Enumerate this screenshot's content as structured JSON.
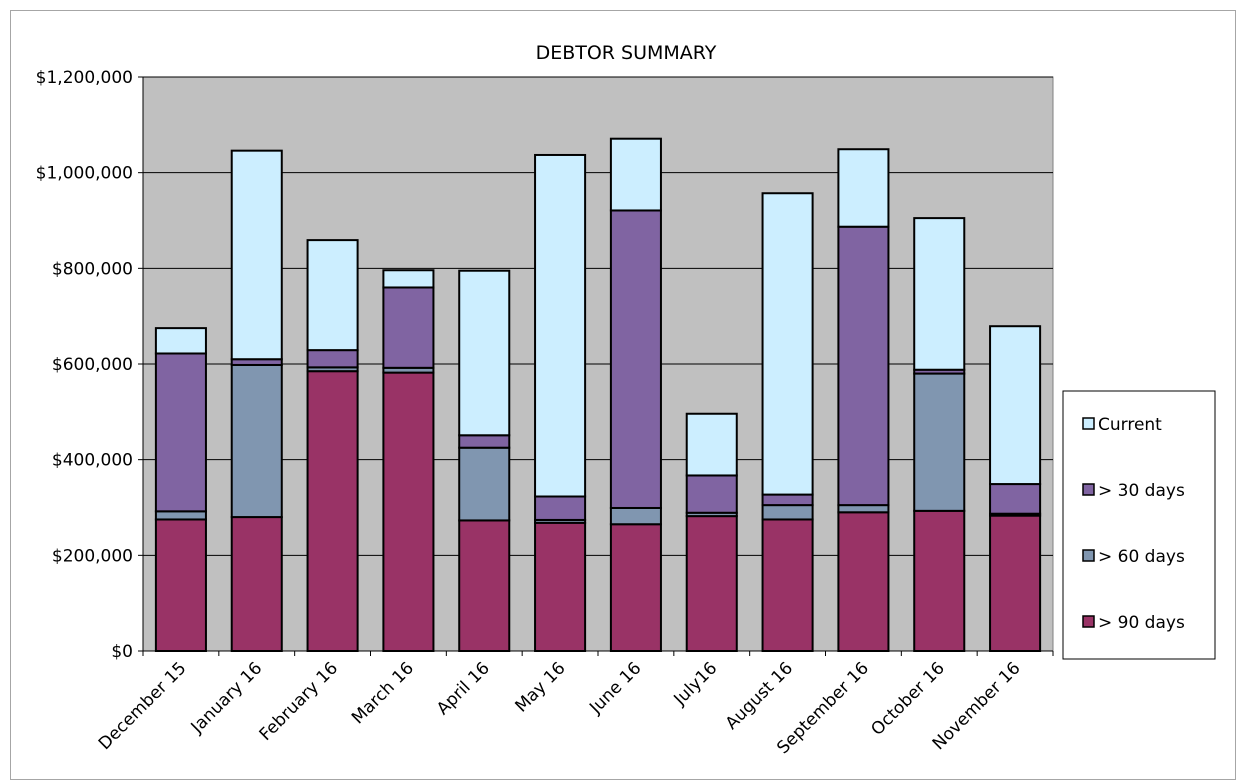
{
  "chart_data": {
    "type": "bar",
    "stacked": true,
    "title": "DEBTOR SUMMARY",
    "xlabel": "",
    "ylabel": "",
    "ylim": [
      0,
      1200000
    ],
    "yticks": [
      0,
      200000,
      400000,
      600000,
      800000,
      1000000,
      1200000
    ],
    "ytick_labels": [
      "$0",
      "$200,000",
      "$400,000",
      "$600,000",
      "$800,000",
      "$1,000,000",
      "$1,200,000"
    ],
    "grid": true,
    "plot_background": "#c0c0c0",
    "legend_position": "right",
    "categories": [
      "December 15",
      "January 16",
      "February 16",
      "March 16",
      "April 16",
      "May 16",
      "June 16",
      "July16",
      "August 16",
      "September 16",
      "October 16",
      "November 16"
    ],
    "series": [
      {
        "name": "> 90 days",
        "color": "#993366",
        "values": [
          275000,
          280000,
          585000,
          582000,
          273000,
          268000,
          265000,
          282000,
          275000,
          290000,
          293000,
          283000
        ]
      },
      {
        "name": "> 60 days",
        "color": "#8096b0",
        "values": [
          17000,
          318000,
          8000,
          10000,
          152000,
          6000,
          34000,
          7000,
          30000,
          15000,
          287000,
          4000
        ]
      },
      {
        "name": "> 30 days",
        "color": "#8064a2",
        "values": [
          330000,
          12000,
          36000,
          168000,
          26000,
          49000,
          622000,
          78000,
          22000,
          582000,
          8000,
          62000
        ]
      },
      {
        "name": "Current",
        "color": "#cceeff",
        "values": [
          53000,
          436000,
          230000,
          36000,
          344000,
          714000,
          150000,
          129000,
          630000,
          162000,
          317000,
          330000
        ]
      }
    ]
  }
}
